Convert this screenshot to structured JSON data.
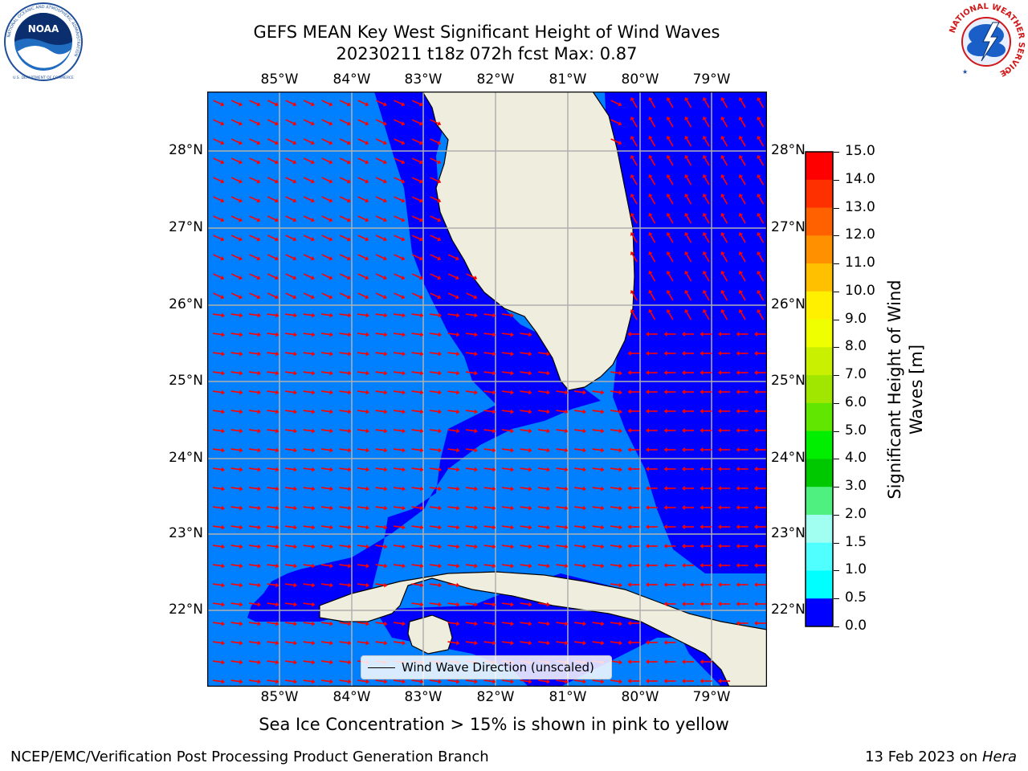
{
  "title": {
    "line1": "GEFS MEAN Key West Significant Height of Wind Waves",
    "line2": "20230211 t18z 072h fcst   Max: 0.87"
  },
  "logos": {
    "left": {
      "name": "NOAA",
      "ring_text": "NATIONAL OCEANIC AND ATMOSPHERIC ADMINISTRATION",
      "bottom_text": "U.S. DEPARTMENT OF COMMERCE"
    },
    "right": {
      "name": "NATIONAL WEATHER SERVICE"
    }
  },
  "map": {
    "lon_labels": [
      "85°W",
      "84°W",
      "83°W",
      "82°W",
      "81°W",
      "80°W",
      "79°W"
    ],
    "lat_labels": [
      "28°N",
      "27°N",
      "26°N",
      "25°N",
      "24°N",
      "23°N",
      "22°N"
    ],
    "legend_label": "Wind Wave Direction (unscaled)",
    "colors": {
      "land": "#efedde",
      "ocean_0_0_5": "#0000ff",
      "ocean_0_5_1": "#0080ff",
      "arrow": "#ff0000",
      "grid": "#b0b0b0"
    }
  },
  "colorbar": {
    "label": "Significant Height of Wind Waves [m]",
    "ticks": [
      "15.0",
      "14.0",
      "13.0",
      "12.0",
      "11.0",
      "10.0",
      "9.0",
      "8.0",
      "7.0",
      "6.0",
      "5.0",
      "4.0",
      "3.0",
      "2.0",
      "1.5",
      "1.0",
      "0.5",
      "0.0"
    ],
    "colors": [
      "#ff0000",
      "#ff3000",
      "#ff6000",
      "#ff9000",
      "#ffc000",
      "#fff000",
      "#f0ff00",
      "#c8f000",
      "#a0e600",
      "#60e600",
      "#00ee00",
      "#00c800",
      "#50f080",
      "#a0fff0",
      "#50ffff",
      "#00ffff",
      "#0080ff",
      "#0000ff"
    ]
  },
  "footer": {
    "note": "Sea Ice Concentration > 15% is shown in pink to yellow",
    "left": "NCEP/EMC/Verification Post Processing Product Generation Branch",
    "right_prefix": "13 Feb 2023 on ",
    "right_host": "Hera"
  }
}
